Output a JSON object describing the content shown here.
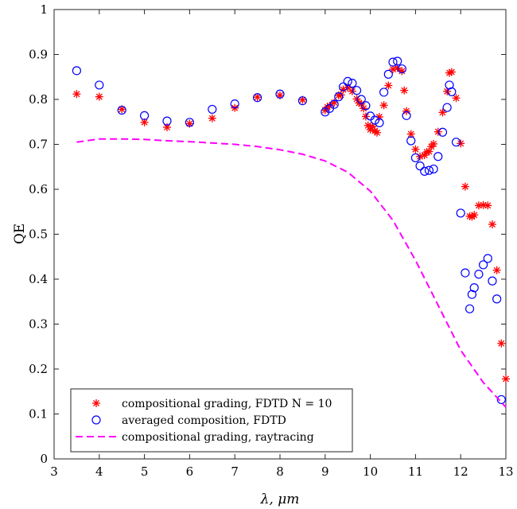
{
  "chart_data": {
    "type": "scatter",
    "title": "",
    "xlabel": "λ, μm",
    "ylabel": "QE",
    "xlim": [
      3,
      13
    ],
    "ylim": [
      0,
      1
    ],
    "xticks": [
      "3",
      "4",
      "5",
      "6",
      "7",
      "8",
      "9",
      "10",
      "11",
      "12",
      "13"
    ],
    "yticks": [
      "0",
      "0.1",
      "0.2",
      "0.3",
      "0.4",
      "0.5",
      "0.6",
      "0.7",
      "0.8",
      "0.9",
      "1"
    ],
    "grid": false,
    "legend_position": "bottom-left",
    "series": [
      {
        "name": "compositional grading, FDTD N = 10",
        "marker": "asterisk",
        "color": "#ff0000",
        "x": [
          3.5,
          4.0,
          4.5,
          5.0,
          5.5,
          6.0,
          6.5,
          7.0,
          7.5,
          8.0,
          8.5,
          9.0,
          9.05,
          9.1,
          9.2,
          9.3,
          9.35,
          9.4,
          9.5,
          9.6,
          9.7,
          9.75,
          9.8,
          9.85,
          9.9,
          9.95,
          10.0,
          10.05,
          10.1,
          10.15,
          10.2,
          10.3,
          10.4,
          10.5,
          10.6,
          10.7,
          10.75,
          10.8,
          10.9,
          11.0,
          11.1,
          11.2,
          11.25,
          11.3,
          11.35,
          11.4,
          11.5,
          11.6,
          11.7,
          11.75,
          11.8,
          11.9,
          12.0,
          12.1,
          12.2,
          12.25,
          12.3,
          12.4,
          12.5,
          12.6,
          12.7,
          12.8,
          12.9,
          13.0
        ],
        "y": [
          0.812,
          0.806,
          0.778,
          0.749,
          0.738,
          0.746,
          0.758,
          0.781,
          0.805,
          0.809,
          0.799,
          0.776,
          0.783,
          0.786,
          0.793,
          0.809,
          0.81,
          0.822,
          0.826,
          0.818,
          0.801,
          0.792,
          0.79,
          0.78,
          0.762,
          0.742,
          0.733,
          0.74,
          0.73,
          0.726,
          0.761,
          0.787,
          0.831,
          0.867,
          0.87,
          0.863,
          0.82,
          0.774,
          0.723,
          0.689,
          0.673,
          0.676,
          0.683,
          0.684,
          0.695,
          0.701,
          0.728,
          0.771,
          0.818,
          0.859,
          0.861,
          0.803,
          0.702,
          0.606,
          0.54,
          0.539,
          0.543,
          0.564,
          0.565,
          0.564,
          0.522,
          0.42,
          0.257,
          0.178
        ]
      },
      {
        "name": "averaged composition, FDTD",
        "marker": "circle",
        "color": "#0000ff",
        "x": [
          3.5,
          4.0,
          4.5,
          5.0,
          5.5,
          6.0,
          6.5,
          7.0,
          7.5,
          8.0,
          8.5,
          9.0,
          9.1,
          9.2,
          9.3,
          9.4,
          9.5,
          9.6,
          9.7,
          9.8,
          9.9,
          10.0,
          10.1,
          10.2,
          10.3,
          10.4,
          10.5,
          10.6,
          10.7,
          10.8,
          10.9,
          11.0,
          11.1,
          11.2,
          11.3,
          11.4,
          11.5,
          11.6,
          11.7,
          11.75,
          11.8,
          11.9,
          12.0,
          12.1,
          12.2,
          12.25,
          12.3,
          12.4,
          12.5,
          12.6,
          12.7,
          12.8,
          12.9
        ],
        "y": [
          0.864,
          0.832,
          0.776,
          0.764,
          0.752,
          0.749,
          0.778,
          0.79,
          0.804,
          0.812,
          0.797,
          0.772,
          0.78,
          0.789,
          0.806,
          0.828,
          0.84,
          0.836,
          0.82,
          0.8,
          0.786,
          0.763,
          0.754,
          0.748,
          0.816,
          0.856,
          0.883,
          0.885,
          0.868,
          0.764,
          0.708,
          0.67,
          0.652,
          0.64,
          0.642,
          0.645,
          0.673,
          0.727,
          0.782,
          0.832,
          0.817,
          0.705,
          0.547,
          0.414,
          0.334,
          0.366,
          0.381,
          0.411,
          0.432,
          0.446,
          0.396,
          0.356,
          0.132
        ]
      },
      {
        "name": "compositional grading, raytracing",
        "marker": "dashed-line",
        "color": "#ff00ff",
        "x": [
          3.5,
          4.0,
          4.5,
          5.0,
          5.5,
          6.0,
          6.5,
          7.0,
          7.5,
          8.0,
          8.5,
          9.0,
          9.5,
          10.0,
          10.5,
          11.0,
          11.5,
          12.0,
          12.5,
          13.0
        ],
        "y": [
          0.705,
          0.712,
          0.712,
          0.711,
          0.708,
          0.706,
          0.703,
          0.7,
          0.695,
          0.688,
          0.678,
          0.663,
          0.638,
          0.596,
          0.531,
          0.442,
          0.342,
          0.242,
          0.17,
          0.115
        ]
      }
    ]
  }
}
